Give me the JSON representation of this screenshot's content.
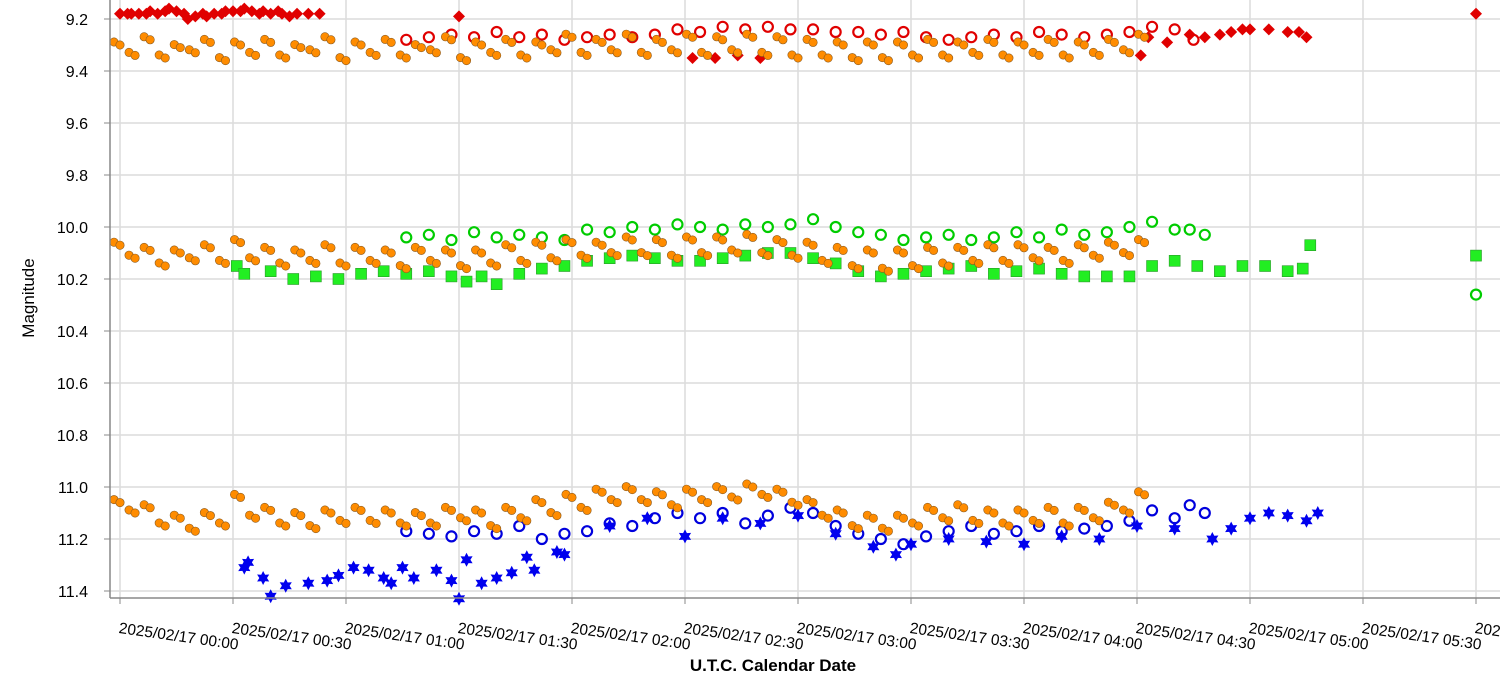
{
  "chart_data": {
    "type": "scatter",
    "xlabel": "U.T.C. Calendar Date",
    "ylabel": "Magnitude",
    "y_inverted": true,
    "ylim": [
      9.12,
      11.43
    ],
    "y_ticks": [
      "9.2",
      "9.4",
      "9.6",
      "9.8",
      "10.0",
      "10.2",
      "10.4",
      "10.6",
      "10.8",
      "11.0",
      "11.2",
      "11.4"
    ],
    "x_range": [
      "2025/02/17 00:00",
      "2025/02/17 06:00"
    ],
    "x_ticks": [
      "2025/02/17 00:00",
      "2025/02/17 00:30",
      "2025/02/17 01:00",
      "2025/02/17 01:30",
      "2025/02/17 02:00",
      "2025/02/17 02:30",
      "2025/02/17 03:00",
      "2025/02/17 03:30",
      "2025/02/17 04:00",
      "2025/02/17 04:30",
      "2025/02/17 05:00",
      "2025/02/17 05:30",
      "202"
    ],
    "grid": true,
    "legend": "none",
    "series": [
      {
        "marker": "open-circle",
        "color": "#e00000",
        "x": [
          "01:16",
          "01:22",
          "01:28",
          "01:34",
          "01:40",
          "01:46",
          "01:52",
          "01:58",
          "02:04",
          "02:10",
          "02:16",
          "02:22",
          "02:28",
          "02:34",
          "02:40",
          "02:46",
          "02:52",
          "02:58",
          "03:04",
          "03:10",
          "03:16",
          "03:22",
          "03:28",
          "03:34",
          "03:40",
          "03:46",
          "03:52",
          "03:58",
          "04:04",
          "04:10",
          "04:16",
          "04:22",
          "04:28",
          "04:34",
          "04:40",
          "04:45"
        ],
        "y": [
          9.28,
          9.27,
          9.26,
          9.27,
          9.25,
          9.27,
          9.26,
          9.28,
          9.27,
          9.26,
          9.27,
          9.26,
          9.24,
          9.25,
          9.23,
          9.24,
          9.23,
          9.24,
          9.24,
          9.25,
          9.25,
          9.26,
          9.25,
          9.27,
          9.28,
          9.27,
          9.26,
          9.27,
          9.25,
          9.26,
          9.27,
          9.26,
          9.25,
          9.23,
          9.24,
          9.28
        ]
      },
      {
        "marker": "diamond",
        "color": "#e00000",
        "x": [
          "00:00",
          "00:02",
          "00:03",
          "00:05",
          "00:07",
          "00:08",
          "00:10",
          "00:12",
          "00:13",
          "00:15",
          "00:17",
          "00:18",
          "00:20",
          "00:22",
          "00:23",
          "00:25",
          "00:27",
          "00:28",
          "00:30",
          "00:32",
          "00:33",
          "00:35",
          "00:37",
          "00:38",
          "00:40",
          "00:42",
          "00:43",
          "00:45",
          "00:47",
          "00:50",
          "00:53",
          "01:30",
          "02:32",
          "02:38",
          "02:44",
          "02:50",
          "04:31",
          "04:33",
          "04:38",
          "04:44",
          "04:48",
          "04:52",
          "04:55",
          "04:58",
          "05:00",
          "05:05",
          "05:10",
          "05:13",
          "05:15",
          "06:00"
        ],
        "y": [
          9.18,
          9.18,
          9.18,
          9.18,
          9.18,
          9.17,
          9.18,
          9.17,
          9.16,
          9.17,
          9.18,
          9.2,
          9.19,
          9.18,
          9.19,
          9.18,
          9.18,
          9.17,
          9.17,
          9.17,
          9.16,
          9.17,
          9.18,
          9.17,
          9.18,
          9.17,
          9.18,
          9.19,
          9.18,
          9.18,
          9.18,
          9.19,
          9.35,
          9.35,
          9.34,
          9.35,
          9.34,
          9.27,
          9.29,
          9.26,
          9.27,
          9.26,
          9.25,
          9.24,
          9.24,
          9.24,
          9.25,
          9.25,
          9.27,
          9.18
        ]
      },
      {
        "marker": "open-circle",
        "color": "#00cc00",
        "x": [
          "01:16",
          "01:22",
          "01:28",
          "01:34",
          "01:40",
          "01:46",
          "01:52",
          "01:58",
          "02:04",
          "02:10",
          "02:16",
          "02:22",
          "02:28",
          "02:34",
          "02:40",
          "02:46",
          "02:52",
          "02:58",
          "03:04",
          "03:10",
          "03:16",
          "03:22",
          "03:28",
          "03:34",
          "03:40",
          "03:46",
          "03:52",
          "03:58",
          "04:04",
          "04:10",
          "04:16",
          "04:22",
          "04:28",
          "04:34",
          "04:40",
          "04:44",
          "04:48",
          "06:00"
        ],
        "y": [
          10.04,
          10.03,
          10.05,
          10.02,
          10.04,
          10.03,
          10.04,
          10.05,
          10.01,
          10.02,
          10.0,
          10.01,
          9.99,
          10.0,
          10.01,
          9.99,
          10.0,
          9.99,
          9.97,
          10.0,
          10.02,
          10.03,
          10.05,
          10.04,
          10.03,
          10.05,
          10.04,
          10.02,
          10.04,
          10.01,
          10.03,
          10.02,
          10.0,
          9.98,
          10.01,
          10.01,
          10.03,
          10.26
        ]
      },
      {
        "marker": "square",
        "color": "#22ee22",
        "x": [
          "00:31",
          "00:33",
          "00:40",
          "00:46",
          "00:52",
          "00:58",
          "01:04",
          "01:10",
          "01:16",
          "01:22",
          "01:28",
          "01:32",
          "01:36",
          "01:40",
          "01:46",
          "01:52",
          "01:58",
          "02:04",
          "02:10",
          "02:16",
          "02:22",
          "02:28",
          "02:34",
          "02:40",
          "02:46",
          "02:52",
          "02:58",
          "03:04",
          "03:10",
          "03:16",
          "03:22",
          "03:28",
          "03:34",
          "03:40",
          "03:46",
          "03:52",
          "03:58",
          "04:04",
          "04:10",
          "04:16",
          "04:22",
          "04:28",
          "04:34",
          "04:40",
          "04:46",
          "04:52",
          "04:58",
          "05:04",
          "05:10",
          "05:14",
          "05:16",
          "06:00"
        ],
        "y": [
          10.15,
          10.18,
          10.17,
          10.2,
          10.19,
          10.2,
          10.18,
          10.17,
          10.18,
          10.17,
          10.19,
          10.21,
          10.19,
          10.22,
          10.18,
          10.16,
          10.15,
          10.13,
          10.12,
          10.11,
          10.12,
          10.13,
          10.13,
          10.12,
          10.11,
          10.1,
          10.1,
          10.12,
          10.14,
          10.17,
          10.19,
          10.18,
          10.17,
          10.16,
          10.15,
          10.18,
          10.17,
          10.16,
          10.18,
          10.19,
          10.19,
          10.19,
          10.15,
          10.13,
          10.15,
          10.17,
          10.15,
          10.15,
          10.17,
          10.16,
          10.07,
          10.11
        ]
      },
      {
        "marker": "open-circle",
        "color": "#0000dd",
        "x": [
          "01:16",
          "01:22",
          "01:28",
          "01:34",
          "01:40",
          "01:46",
          "01:52",
          "01:58",
          "02:04",
          "02:10",
          "02:16",
          "02:22",
          "02:28",
          "02:34",
          "02:40",
          "02:46",
          "02:52",
          "02:58",
          "03:04",
          "03:10",
          "03:16",
          "03:22",
          "03:28",
          "03:34",
          "03:40",
          "03:46",
          "03:52",
          "03:58",
          "04:04",
          "04:10",
          "04:16",
          "04:22",
          "04:28",
          "04:34",
          "04:40",
          "04:44",
          "04:48"
        ],
        "y": [
          11.17,
          11.18,
          11.19,
          11.17,
          11.18,
          11.15,
          11.2,
          11.18,
          11.17,
          11.14,
          11.15,
          11.12,
          11.1,
          11.12,
          11.1,
          11.14,
          11.11,
          11.08,
          11.1,
          11.15,
          11.18,
          11.2,
          11.22,
          11.19,
          11.17,
          11.15,
          11.18,
          11.17,
          11.15,
          11.17,
          11.16,
          11.15,
          11.13,
          11.09,
          11.12,
          11.07,
          11.1
        ]
      },
      {
        "marker": "star",
        "color": "#0000ee",
        "x": [
          "00:33",
          "00:34",
          "00:38",
          "00:40",
          "00:44",
          "00:50",
          "00:55",
          "00:58",
          "01:02",
          "01:06",
          "01:10",
          "01:12",
          "01:15",
          "01:18",
          "01:24",
          "01:28",
          "01:30",
          "01:32",
          "01:36",
          "01:40",
          "01:44",
          "01:48",
          "01:50",
          "01:56",
          "01:58",
          "02:10",
          "02:20",
          "02:30",
          "02:40",
          "02:50",
          "03:00",
          "03:10",
          "03:20",
          "03:26",
          "03:30",
          "03:40",
          "03:50",
          "04:00",
          "04:10",
          "04:20",
          "04:30",
          "04:40",
          "04:50",
          "04:55",
          "05:00",
          "05:05",
          "05:10",
          "05:15",
          "05:18"
        ],
        "y": [
          11.31,
          11.29,
          11.35,
          11.42,
          11.38,
          11.37,
          11.36,
          11.34,
          11.31,
          11.32,
          11.35,
          11.37,
          11.31,
          11.35,
          11.32,
          11.36,
          11.43,
          11.28,
          11.37,
          11.35,
          11.33,
          11.27,
          11.32,
          11.25,
          11.26,
          11.15,
          11.12,
          11.19,
          11.12,
          11.14,
          11.11,
          11.18,
          11.23,
          11.26,
          11.22,
          11.2,
          11.21,
          11.22,
          11.19,
          11.2,
          11.15,
          11.16,
          11.2,
          11.16,
          11.12,
          11.1,
          11.11,
          11.13,
          11.1
        ]
      },
      {
        "marker": "filled-circle",
        "color": "#ff8c00",
        "x": [
          "00:00",
          "00:04",
          "00:08",
          "00:12",
          "00:16",
          "00:20",
          "00:24",
          "00:28",
          "00:32",
          "00:36",
          "00:40",
          "00:44",
          "00:48",
          "00:52",
          "00:56",
          "01:00",
          "01:04",
          "01:08",
          "01:12",
          "01:16",
          "01:20",
          "01:24",
          "01:28",
          "01:32",
          "01:36",
          "01:40",
          "01:44",
          "01:48",
          "01:52",
          "01:56",
          "02:00",
          "02:04",
          "02:08",
          "02:12",
          "02:16",
          "02:20",
          "02:24",
          "02:28",
          "02:32",
          "02:36",
          "02:40",
          "02:44",
          "02:48",
          "02:52",
          "02:56",
          "03:00",
          "03:04",
          "03:08",
          "03:12",
          "03:16",
          "03:20",
          "03:24",
          "03:28",
          "03:32",
          "03:36",
          "03:40",
          "03:44",
          "03:48",
          "03:52",
          "03:56",
          "04:00",
          "04:04",
          "04:08",
          "04:12",
          "04:16",
          "04:20",
          "04:24",
          "04:28",
          "04:32"
        ],
        "y": [
          9.3,
          9.34,
          9.28,
          9.35,
          9.31,
          9.33,
          9.29,
          9.36,
          9.3,
          9.34,
          9.29,
          9.35,
          9.31,
          9.33,
          9.28,
          9.36,
          9.3,
          9.34,
          9.29,
          9.35,
          9.31,
          9.33,
          9.28,
          9.36,
          9.3,
          9.34,
          9.29,
          9.35,
          9.3,
          9.33,
          9.27,
          9.34,
          9.29,
          9.33,
          9.27,
          9.34,
          9.29,
          9.33,
          9.27,
          9.34,
          9.28,
          9.33,
          9.27,
          9.34,
          9.28,
          9.35,
          9.29,
          9.35,
          9.3,
          9.36,
          9.3,
          9.36,
          9.3,
          9.35,
          9.29,
          9.35,
          9.3,
          9.34,
          9.29,
          9.35,
          9.3,
          9.34,
          9.29,
          9.35,
          9.3,
          9.34,
          9.29,
          9.33,
          9.27
        ]
      },
      {
        "marker": "filled-circle",
        "color": "#ff8c00",
        "x": [
          "00:00",
          "00:04",
          "00:08",
          "00:12",
          "00:16",
          "00:20",
          "00:24",
          "00:28",
          "00:32",
          "00:36",
          "00:40",
          "00:44",
          "00:48",
          "00:52",
          "00:56",
          "01:00",
          "01:04",
          "01:08",
          "01:12",
          "01:16",
          "01:20",
          "01:24",
          "01:28",
          "01:32",
          "01:36",
          "01:40",
          "01:44",
          "01:48",
          "01:52",
          "01:56",
          "02:00",
          "02:04",
          "02:08",
          "02:12",
          "02:16",
          "02:20",
          "02:24",
          "02:28",
          "02:32",
          "02:36",
          "02:40",
          "02:44",
          "02:48",
          "02:52",
          "02:56",
          "03:00",
          "03:04",
          "03:08",
          "03:12",
          "03:16",
          "03:20",
          "03:24",
          "03:28",
          "03:32",
          "03:36",
          "03:40",
          "03:44",
          "03:48",
          "03:52",
          "03:56",
          "04:00",
          "04:04",
          "04:08",
          "04:12",
          "04:16",
          "04:20",
          "04:24",
          "04:28",
          "04:32"
        ],
        "y": [
          10.07,
          10.12,
          10.09,
          10.15,
          10.1,
          10.13,
          10.08,
          10.14,
          10.06,
          10.13,
          10.09,
          10.15,
          10.1,
          10.14,
          10.08,
          10.15,
          10.09,
          10.14,
          10.1,
          10.16,
          10.09,
          10.14,
          10.1,
          10.16,
          10.1,
          10.15,
          10.08,
          10.14,
          10.07,
          10.13,
          10.06,
          10.12,
          10.07,
          10.11,
          10.05,
          10.11,
          10.06,
          10.12,
          10.05,
          10.11,
          10.05,
          10.1,
          10.04,
          10.11,
          10.06,
          10.12,
          10.07,
          10.14,
          10.09,
          10.16,
          10.1,
          10.17,
          10.1,
          10.16,
          10.09,
          10.15,
          10.09,
          10.14,
          10.08,
          10.14,
          10.08,
          10.13,
          10.09,
          10.14,
          10.08,
          10.12,
          10.07,
          10.11,
          10.06
        ]
      },
      {
        "marker": "filled-circle",
        "color": "#ff8c00",
        "x": [
          "00:00",
          "00:04",
          "00:08",
          "00:12",
          "00:16",
          "00:20",
          "00:24",
          "00:28",
          "00:32",
          "00:36",
          "00:40",
          "00:44",
          "00:48",
          "00:52",
          "00:56",
          "01:00",
          "01:04",
          "01:08",
          "01:12",
          "01:16",
          "01:20",
          "01:24",
          "01:28",
          "01:32",
          "01:36",
          "01:40",
          "01:44",
          "01:48",
          "01:52",
          "01:56",
          "02:00",
          "02:04",
          "02:08",
          "02:12",
          "02:16",
          "02:20",
          "02:24",
          "02:28",
          "02:32",
          "02:36",
          "02:40",
          "02:44",
          "02:48",
          "02:52",
          "02:56",
          "03:00",
          "03:04",
          "03:08",
          "03:12",
          "03:16",
          "03:20",
          "03:24",
          "03:28",
          "03:32",
          "03:36",
          "03:40",
          "03:44",
          "03:48",
          "03:52",
          "03:56",
          "04:00",
          "04:04",
          "04:08",
          "04:12",
          "04:16",
          "04:20",
          "04:24",
          "04:28",
          "04:32"
        ],
        "y": [
          11.06,
          11.1,
          11.08,
          11.15,
          11.12,
          11.17,
          11.11,
          11.15,
          11.04,
          11.12,
          11.09,
          11.15,
          11.11,
          11.16,
          11.1,
          11.14,
          11.09,
          11.14,
          11.1,
          11.15,
          11.11,
          11.15,
          11.09,
          11.13,
          11.1,
          11.16,
          11.09,
          11.13,
          11.06,
          11.11,
          11.04,
          11.09,
          11.02,
          11.06,
          11.01,
          11.06,
          11.03,
          11.08,
          11.02,
          11.06,
          11.01,
          11.05,
          11.0,
          11.04,
          11.02,
          11.07,
          11.06,
          11.12,
          11.1,
          11.16,
          11.12,
          11.17,
          11.12,
          11.15,
          11.09,
          11.13,
          11.08,
          11.14,
          11.1,
          11.15,
          11.1,
          11.14,
          11.09,
          11.15,
          11.09,
          11.13,
          11.07,
          11.1,
          11.03
        ]
      }
    ]
  }
}
